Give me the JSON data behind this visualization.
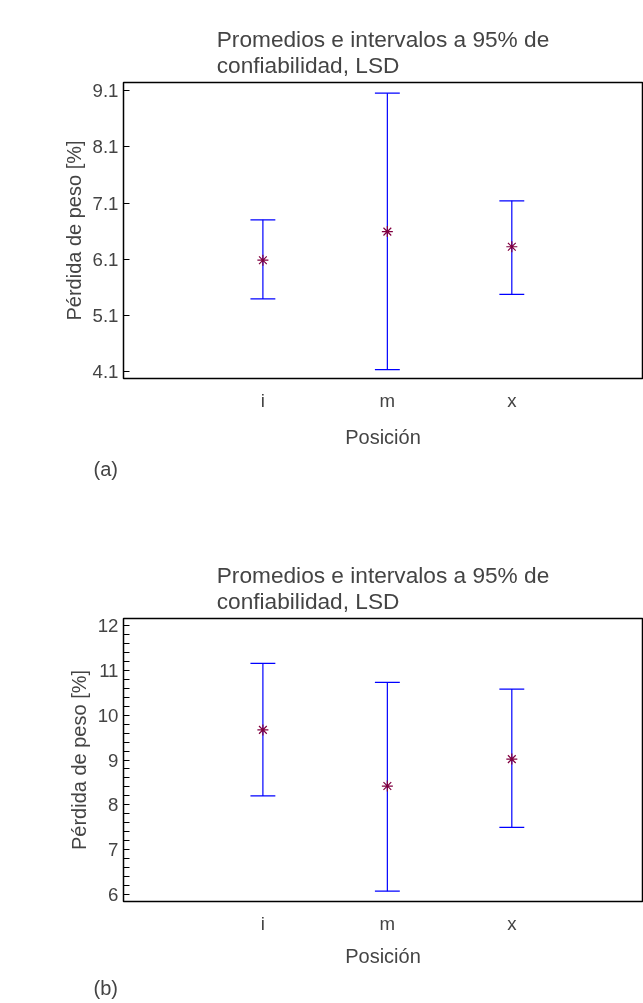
{
  "chart_data": [
    {
      "type": "scatter",
      "title": "Promedios e intervalos a 95% de confiabilidad, LSD",
      "xlabel": "Posición",
      "ylabel": "Pérdida de peso [%]",
      "categories": [
        "i",
        "m",
        "x"
      ],
      "values": [
        6.08,
        6.59,
        6.32
      ],
      "errors": [
        [
          5.39,
          6.8
        ],
        [
          4.13,
          9.06
        ],
        [
          5.47,
          7.14
        ]
      ],
      "color": "#800040",
      "marker": "cross",
      "ylim": [
        3.97,
        9.25
      ],
      "yticks": [
        4.1,
        5.1,
        6.1,
        7.1,
        8.1,
        9.1
      ],
      "grid": false,
      "annotations": [
        "(a)"
      ]
    },
    {
      "type": "scatter",
      "title": "Promedios e intervalos a 95% de confiabilidad, LSD",
      "xlabel": "Posición",
      "ylabel": "Pérdida de peso [%]",
      "categories": [
        "i",
        "m",
        "x"
      ],
      "values": [
        9.67,
        8.42,
        9.02
      ],
      "errors": [
        [
          8.2,
          11.15
        ],
        [
          6.08,
          10.73
        ],
        [
          7.5,
          10.58
        ]
      ],
      "color": "#800040",
      "marker": "cross",
      "ylim": [
        5.85,
        12.15
      ],
      "yticks": [
        6,
        {
          "value": 6.2,
          "label": null
        },
        {
          "value": 6.4,
          "label": null
        },
        {
          "value": 6.6,
          "label": null
        },
        {
          "value": 6.8,
          "label": null
        },
        7,
        {
          "value": 7.2,
          "label": null
        },
        {
          "value": 7.4,
          "label": null
        },
        {
          "value": 7.6,
          "label": null
        },
        {
          "value": 7.8,
          "label": null
        },
        8,
        {
          "value": 8.2,
          "label": null
        },
        {
          "value": 8.4,
          "label": null
        },
        {
          "value": 8.6,
          "label": null
        },
        {
          "value": 8.8,
          "label": null
        },
        9,
        {
          "value": 9.2,
          "label": null
        },
        {
          "value": 9.4,
          "label": null
        },
        {
          "value": 9.6,
          "label": null
        },
        {
          "value": 9.8,
          "label": null
        },
        10,
        {
          "value": 10.2,
          "label": null
        },
        {
          "value": 10.4,
          "label": null
        },
        {
          "value": 10.6,
          "label": null
        },
        {
          "value": 10.8,
          "label": null
        },
        11,
        {
          "value": 11.2,
          "label": null
        },
        {
          "value": 11.4,
          "label": null
        },
        {
          "value": 11.6,
          "label": null
        },
        {
          "value": 11.8,
          "label": null
        },
        12
      ],
      "grid": false,
      "annotations": [
        "(b)"
      ]
    }
  ]
}
